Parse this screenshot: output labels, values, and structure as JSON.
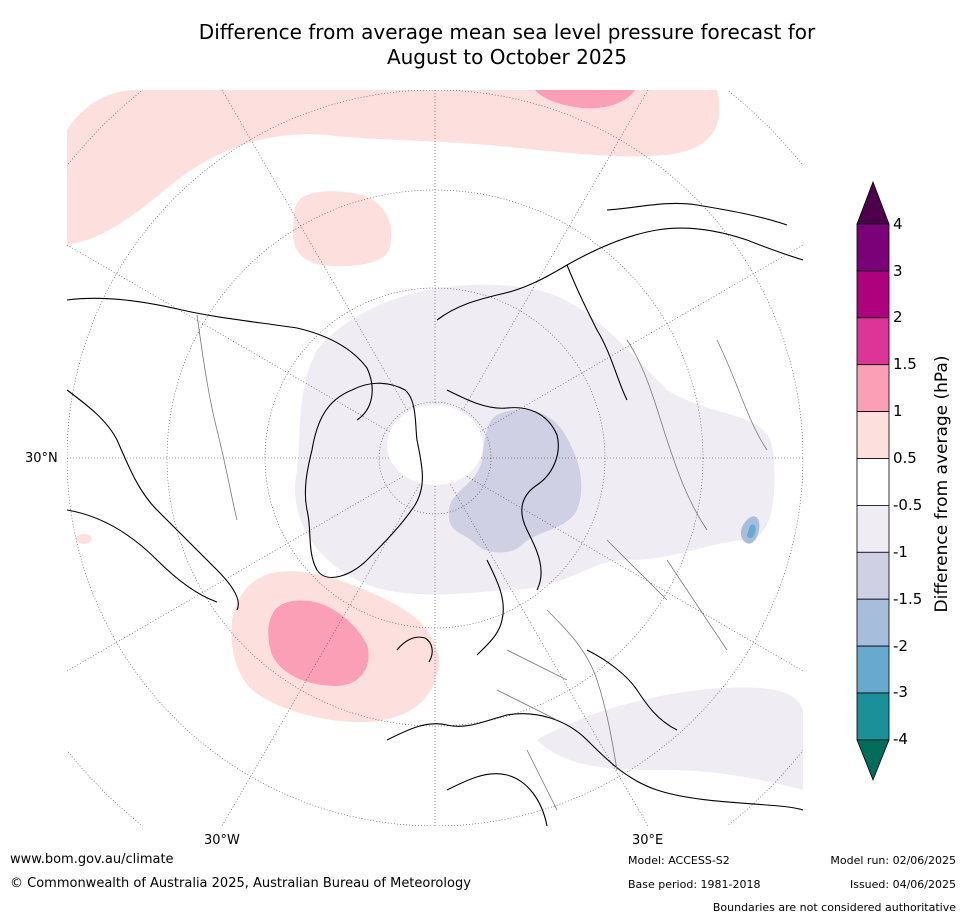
{
  "title": {
    "line1": "Difference from average mean sea level pressure forecast for",
    "line2": "August to October 2025"
  },
  "map": {
    "projection": "north-polar-stereographic",
    "labels": {
      "lat_30n": "30°N",
      "lon_30w": "30°W",
      "lon_30e": "30°E"
    },
    "anomaly_regions": [
      {
        "name": "north-pacific-high",
        "value_range": "0.5 to 1",
        "color": "#fde0dd"
      },
      {
        "name": "north-pacific-core",
        "value_range": "1 to 1.5",
        "color": "#fa9fb5"
      },
      {
        "name": "north-atlantic-high",
        "value_range": "0.5 to 1",
        "color": "#fde0dd"
      },
      {
        "name": "north-atlantic-core",
        "value_range": "1 to 1.5",
        "color": "#fa9fb5"
      },
      {
        "name": "arctic-low",
        "value_range": "-1 to -0.5",
        "color": "#f0ecf3"
      },
      {
        "name": "barents-kara-low",
        "value_range": "-1.5 to -1",
        "color": "#cfd0e4"
      }
    ]
  },
  "colorbar": {
    "label": "Difference from average (hPa)",
    "ticks": [
      "4",
      "3",
      "2",
      "1.5",
      "1",
      "0.5",
      "-0.5",
      "-1",
      "-1.5",
      "-2",
      "-3",
      "-4"
    ],
    "colors": {
      "above_4": "#4d004b",
      "3_to_4": "#7a0177",
      "2_to_3": "#ae017e",
      "1.5_to_2": "#dd3497",
      "1_to_1.5": "#fa9fb5",
      "0.5_to_1": "#fde0dd",
      "-0.5_to_0.5": "#ffffff",
      "-1_to_-0.5": "#f0ecf3",
      "-1.5_to_-1": "#cfd0e4",
      "-2_to_-1.5": "#a6bddb",
      "-3_to_-2": "#67a9cf",
      "-4_to_-3": "#1c9099",
      "below_-4": "#016c59"
    }
  },
  "footer": {
    "url": "www.bom.gov.au/climate",
    "copyright": "© Commonwealth of Australia 2025, Australian Bureau of Meteorology",
    "model": "Model: ACCESS-S2",
    "base_period": "Base period: 1981-2018",
    "model_run": "Model run: 02/06/2025",
    "issued": "Issued: 04/06/2025",
    "disclaimer": "Boundaries are not considered authoritative"
  }
}
